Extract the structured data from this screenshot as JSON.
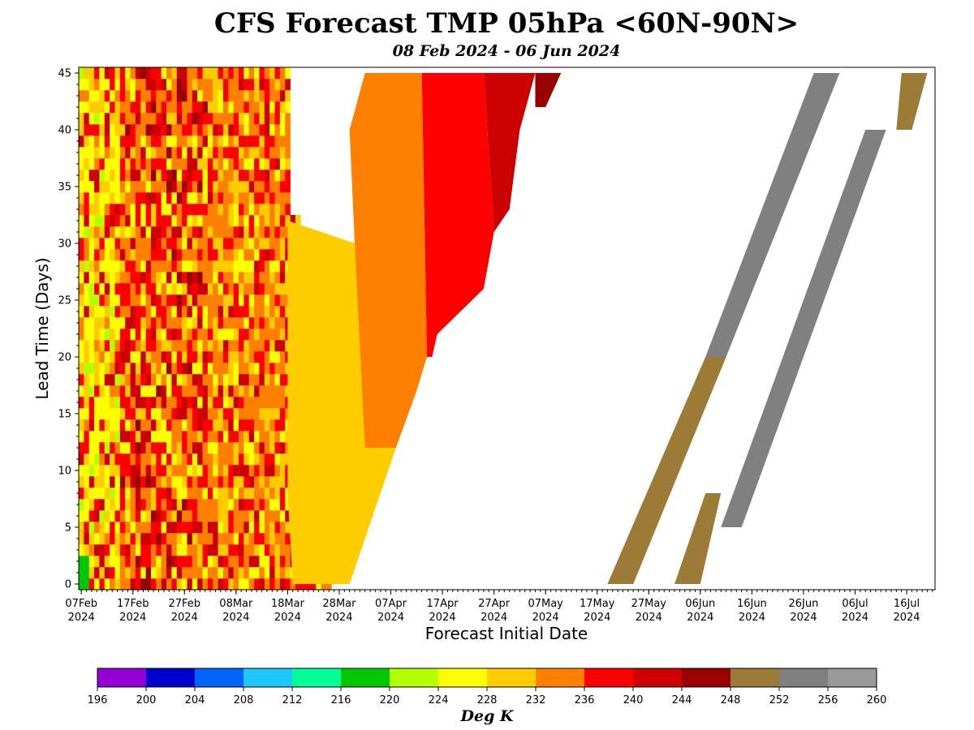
{
  "chart_data": {
    "type": "heatmap",
    "title": "CFS Forecast TMP 05hPa <60N-90N>",
    "subtitle": "08 Feb 2024 - 06 Jun 2024",
    "xlabel": "Forecast Initial Date",
    "ylabel": "Lead Time (Days)",
    "colorbar_label": "Deg K",
    "x_ticks": [
      {
        "line1": "07Feb",
        "line2": "2024",
        "day": 0
      },
      {
        "line1": "17Feb",
        "line2": "2024",
        "day": 10
      },
      {
        "line1": "27Feb",
        "line2": "2024",
        "day": 20
      },
      {
        "line1": "08Mar",
        "line2": "2024",
        "day": 30
      },
      {
        "line1": "18Mar",
        "line2": "2024",
        "day": 40
      },
      {
        "line1": "28Mar",
        "line2": "2024",
        "day": 50
      },
      {
        "line1": "07Apr",
        "line2": "2024",
        "day": 60
      },
      {
        "line1": "17Apr",
        "line2": "2024",
        "day": 70
      },
      {
        "line1": "27Apr",
        "line2": "2024",
        "day": 80
      },
      {
        "line1": "07May",
        "line2": "2024",
        "day": 90
      },
      {
        "line1": "17May",
        "line2": "2024",
        "day": 100
      },
      {
        "line1": "27May",
        "line2": "2024",
        "day": 110
      },
      {
        "line1": "06Jun",
        "line2": "2024",
        "day": 120
      },
      {
        "line1": "16Jun",
        "line2": "2024",
        "day": 130
      },
      {
        "line1": "26Jun",
        "line2": "2024",
        "day": 140
      },
      {
        "line1": "06Jul",
        "line2": "2024",
        "day": 150
      },
      {
        "line1": "16Jul",
        "line2": "2024",
        "day": 160
      }
    ],
    "xlim_days": [
      -0.5,
      165.5
    ],
    "y_ticks": [
      0,
      5,
      10,
      15,
      20,
      25,
      30,
      35,
      40,
      45
    ],
    "ylim": [
      -0.5,
      45.5
    ],
    "colorbar": {
      "levels": [
        196,
        200,
        204,
        208,
        212,
        216,
        220,
        224,
        228,
        232,
        236,
        240,
        244,
        248,
        252,
        256,
        260
      ],
      "colors": [
        "#9400d3",
        "#0000cd",
        "#0064ff",
        "#1ec8ff",
        "#00ff96",
        "#00c800",
        "#b4ff00",
        "#ffff00",
        "#ffcc00",
        "#ff8000",
        "#ff0000",
        "#cc0000",
        "#990000",
        "#9b7b35",
        "#808080",
        "#999999"
      ]
    },
    "regions": [
      {
        "band": "236-240",
        "color": "#ff0000",
        "polygon": [
          [
            66,
            45
          ],
          [
            78,
            45
          ],
          [
            80,
            31
          ],
          [
            78,
            26
          ],
          [
            69,
            22
          ],
          [
            68,
            20
          ],
          [
            67,
            20
          ]
        ]
      },
      {
        "band": "240-244",
        "color": "#cc0000",
        "polygon": [
          [
            78,
            45
          ],
          [
            88,
            45
          ],
          [
            85,
            40
          ],
          [
            83,
            33
          ],
          [
            80,
            31
          ]
        ]
      },
      {
        "band": "244-248",
        "color": "#990000",
        "polygon": [
          [
            88,
            45
          ],
          [
            93,
            45
          ],
          [
            90,
            42
          ],
          [
            88,
            42
          ]
        ]
      },
      {
        "band": "232-236",
        "color": "#ff8000",
        "polygon": [
          [
            55,
            45
          ],
          [
            66,
            45
          ],
          [
            67,
            20
          ],
          [
            65,
            17
          ],
          [
            61,
            12
          ],
          [
            58,
            12
          ],
          [
            55,
            12
          ],
          [
            54,
            20
          ],
          [
            53,
            30
          ],
          [
            52,
            40
          ]
        ]
      },
      {
        "band": "228-232",
        "color": "#ffcc00",
        "polygon": [
          [
            40,
            32
          ],
          [
            53,
            30
          ],
          [
            55,
            12
          ],
          [
            61,
            12
          ],
          [
            52,
            0
          ],
          [
            41,
            0
          ],
          [
            40,
            8
          ]
        ]
      },
      {
        "band": "248-252",
        "color": "#9b7b35",
        "polygon": [
          [
            102,
            0
          ],
          [
            107,
            0
          ],
          [
            125,
            20
          ],
          [
            121,
            20
          ]
        ]
      },
      {
        "band": "248-252",
        "color": "#9b7b35",
        "polygon": [
          [
            115,
            0
          ],
          [
            120,
            0
          ],
          [
            124,
            8
          ],
          [
            121,
            8
          ]
        ]
      },
      {
        "band": "248-252",
        "color": "#9b7b35",
        "polygon": [
          [
            161,
            40
          ],
          [
            164,
            45
          ],
          [
            159,
            45
          ],
          [
            158,
            40
          ]
        ]
      },
      {
        "band": "252-256",
        "color": "#808080",
        "polygon": [
          [
            121,
            20
          ],
          [
            125,
            20
          ],
          [
            147,
            45
          ],
          [
            142,
            45
          ]
        ]
      },
      {
        "band": "252-256",
        "color": "#808080",
        "polygon": [
          [
            124,
            5
          ],
          [
            128,
            5
          ],
          [
            156,
            40
          ],
          [
            152,
            40
          ]
        ]
      }
    ]
  }
}
